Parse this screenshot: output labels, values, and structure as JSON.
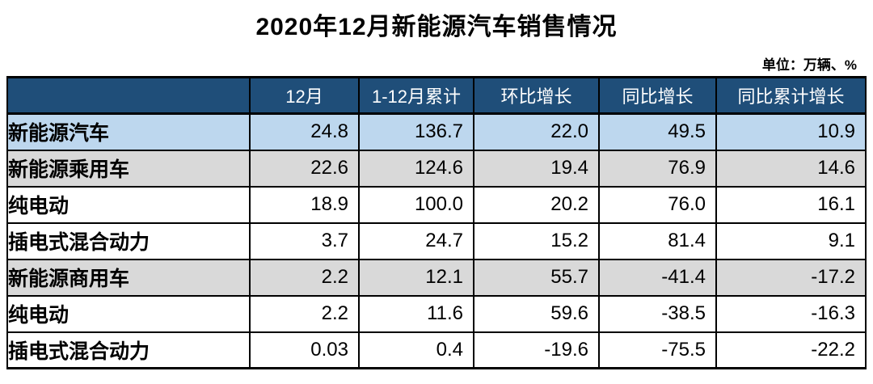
{
  "title": "2020年12月新能源汽车销售情况",
  "unit_note": "单位：万辆、%",
  "colors": {
    "header_bg": "#1F4E79",
    "header_text": "#FFFFFF",
    "highlight_row_bg": "#BDD7EE",
    "subtotal_row_bg": "#D9D9D9",
    "detail_row_bg": "#FFFFFF",
    "border": "#000000"
  },
  "chart_data": {
    "type": "table",
    "title": "2020年12月新能源汽车销售情况",
    "unit": "万辆、%",
    "columns": [
      "",
      "12月",
      "1-12月累计",
      "环比增长",
      "同比增长",
      "同比累计增长"
    ],
    "rows": [
      {
        "label": "新能源汽车",
        "indent": 0,
        "style": "highlight",
        "values": [
          "24.8",
          "136.7",
          "22.0",
          "49.5",
          "10.9"
        ]
      },
      {
        "label": "新能源乘用车",
        "indent": 1,
        "style": "subtotal",
        "values": [
          "22.6",
          "124.6",
          "19.4",
          "76.9",
          "14.6"
        ]
      },
      {
        "label": "纯电动",
        "indent": 2,
        "style": "detail",
        "values": [
          "18.9",
          "100.0",
          "20.2",
          "76.0",
          "16.1"
        ]
      },
      {
        "label": "插电式混合动力",
        "indent": 2,
        "style": "detail",
        "values": [
          "3.7",
          "24.7",
          "15.2",
          "81.4",
          "9.1"
        ]
      },
      {
        "label": "新能源商用车",
        "indent": 1,
        "style": "subtotal",
        "values": [
          "2.2",
          "12.1",
          "55.7",
          "-41.4",
          "-17.2"
        ]
      },
      {
        "label": "纯电动",
        "indent": 2,
        "style": "detail",
        "values": [
          "2.2",
          "11.6",
          "59.6",
          "-38.5",
          "-16.3"
        ]
      },
      {
        "label": "插电式混合动力",
        "indent": 2,
        "style": "detail",
        "values": [
          "0.03",
          "0.4",
          "-19.6",
          "-75.5",
          "-22.2"
        ]
      }
    ]
  }
}
